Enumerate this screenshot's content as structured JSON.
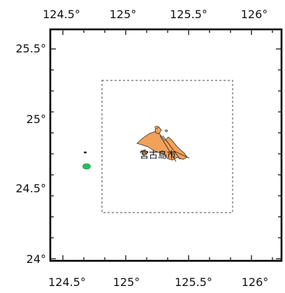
{
  "map": {
    "axes": {
      "x_ticks": [
        {
          "value": 124.5,
          "label": "124.5°"
        },
        {
          "value": 125,
          "label": "125°"
        },
        {
          "value": 125.5,
          "label": "125.5°"
        },
        {
          "value": 126,
          "label": "126°"
        }
      ],
      "y_ticks": [
        {
          "value": 25.5,
          "label": "25.5°"
        },
        {
          "value": 25,
          "label": "25°"
        },
        {
          "value": 24.5,
          "label": "24.5°"
        },
        {
          "value": 24,
          "label": "24°"
        }
      ],
      "lon_range": [
        124.4,
        126.2
      ],
      "lat_range": [
        23.98,
        25.62
      ]
    },
    "place_label": "宮古島市",
    "study_area_box": {
      "lon": [
        124.82,
        125.84
      ],
      "lat": [
        24.32,
        25.28
      ]
    },
    "colors": {
      "frame": "#000000",
      "island_fill": "#f2a15a",
      "marker_fill": "#22c25a",
      "box_stroke": "#444444"
    }
  }
}
